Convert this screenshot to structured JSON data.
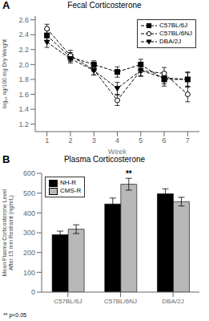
{
  "chart_data": [
    {
      "type": "line",
      "panel_label": "A",
      "title": "Fecal Corticosterone",
      "x_label": "Week",
      "y_label": "log₁₀ ng/100 mg Dry Weight",
      "x": [
        1,
        2,
        3,
        4,
        5,
        6,
        7
      ],
      "xlim": [
        0.5,
        7.5
      ],
      "xticks": [
        1,
        2,
        3,
        4,
        5,
        6,
        7
      ],
      "ylim": [
        1.1,
        2.65
      ],
      "yticks": [
        1.2,
        1.4,
        1.6,
        1.8,
        {
          "value": 2,
          "label": "2.0"
        },
        2.2,
        2.4,
        2.6
      ],
      "legend": "upper right",
      "series": [
        {
          "name": "C57BL/6J",
          "color": "black",
          "marker": "square",
          "line_style": "dashed",
          "values": [
            2.39,
            2.1,
            2.0,
            1.9,
            2.0,
            1.8,
            1.8
          ],
          "errors": [
            0.07,
            0.06,
            0.05,
            0.07,
            0.07,
            0.09,
            0.1
          ]
        },
        {
          "name": "C57BL/6NJ",
          "color": "black",
          "marker": "circle_open",
          "line_style": "dashed",
          "values": [
            2.48,
            2.12,
            1.93,
            1.52,
            1.92,
            1.88,
            1.6
          ],
          "errors": [
            0.06,
            0.07,
            0.07,
            0.07,
            0.08,
            0.08,
            0.1
          ]
        },
        {
          "name": "DBA/2J",
          "color": "black",
          "marker": "triangle_down",
          "line_style": "dashed",
          "values": [
            2.3,
            2.08,
            1.92,
            1.68,
            1.92,
            1.82,
            1.8
          ],
          "errors": [
            0.07,
            0.06,
            0.06,
            0.08,
            0.07,
            0.08,
            0.09
          ]
        }
      ]
    },
    {
      "type": "bar",
      "panel_label": "B",
      "title": "Plasma Corticosterone",
      "y_label": "Mean Plasma Corticosterone Level\nAfter 15 min Restraint (ng/mL)",
      "categories": [
        "C57BL/6J",
        "C57BL/6NJ",
        "DBA/2J"
      ],
      "ylim": [
        0,
        600
      ],
      "yticks": [
        0,
        100,
        200,
        300,
        400,
        500,
        600
      ],
      "legend": "upper left",
      "series": [
        {
          "name": "NH-R",
          "color": "black",
          "values": [
            290,
            445,
            497
          ],
          "errors": [
            18,
            30,
            25
          ]
        },
        {
          "name": "CMS-R",
          "color": "#b8b8b8",
          "values": [
            318,
            545,
            457
          ],
          "errors": [
            22,
            30,
            22
          ]
        }
      ],
      "annotations": [
        {
          "text": "**",
          "category": "C57BL/6NJ",
          "series": "CMS-R"
        },
        {
          "text": "** p<0.05"
        }
      ]
    }
  ]
}
